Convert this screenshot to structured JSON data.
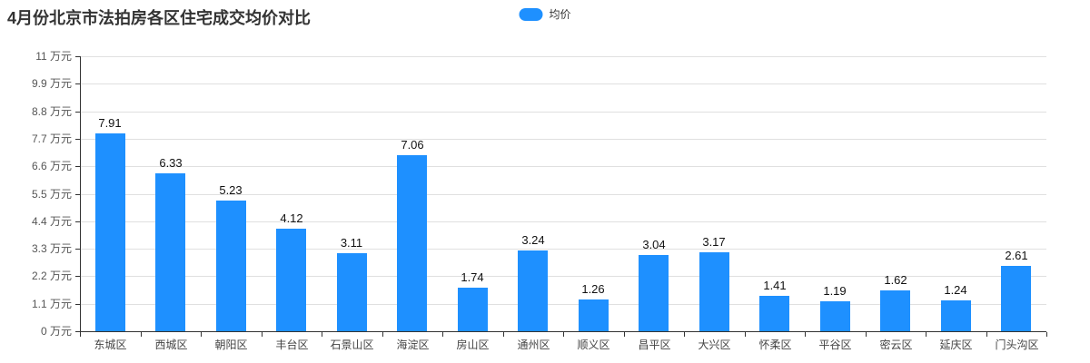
{
  "title": "4月份北京市法拍房各区住宅成交均价对比",
  "legend": {
    "label": "均价"
  },
  "colors": {
    "bar": "#1e90ff",
    "axis": "#333333",
    "grid": "#e0e0e0"
  },
  "chart_data": {
    "type": "bar",
    "title": "4月份北京市法拍房各区住宅成交均价对比",
    "series_name": "均价",
    "categories": [
      "东城区",
      "西城区",
      "朝阳区",
      "丰台区",
      "石景山区",
      "海淀区",
      "房山区",
      "通州区",
      "顺义区",
      "昌平区",
      "大兴区",
      "怀柔区",
      "平谷区",
      "密云区",
      "延庆区",
      "门头沟区"
    ],
    "values": [
      7.91,
      6.33,
      5.23,
      4.12,
      3.11,
      7.06,
      1.74,
      3.24,
      1.26,
      3.04,
      3.17,
      1.41,
      1.19,
      1.62,
      1.24,
      2.61
    ],
    "unit": "万元",
    "ylim": [
      0,
      11
    ],
    "y_ticks": [
      0,
      1.1,
      2.2,
      3.3,
      4.4,
      5.5,
      6.6,
      7.7,
      8.8,
      9.9,
      11
    ],
    "y_tick_labels": [
      "0 万元",
      "1.1 万元",
      "2.2 万元",
      "3.3 万元",
      "4.4 万元",
      "5.5 万元",
      "6.6 万元",
      "7.7 万元",
      "8.8 万元",
      "9.9 万元",
      "11 万元"
    ],
    "grid": true,
    "legend_position": "top-center",
    "value_labels": true
  }
}
